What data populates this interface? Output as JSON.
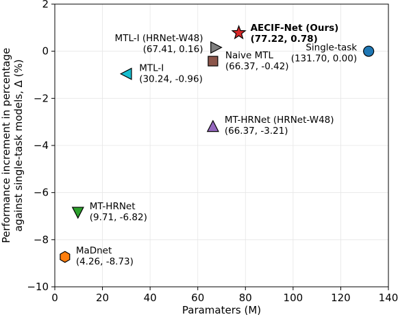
{
  "chart_data": {
    "type": "scatter",
    "title": "",
    "xlabel": "Paramaters (M)",
    "ylabel_lines": [
      "Performance increment in percentage",
      "against single-task models, Δ (%)"
    ],
    "xlim": [
      0,
      140
    ],
    "ylim": [
      -10,
      2
    ],
    "xticks": [
      0,
      20,
      40,
      60,
      80,
      100,
      120,
      140
    ],
    "yticks": [
      -10,
      -8,
      -6,
      -4,
      -2,
      0,
      2
    ],
    "xtick_labels": [
      "0",
      "20",
      "40",
      "60",
      "80",
      "100",
      "120",
      "140"
    ],
    "ytick_labels": [
      "−10",
      "−8",
      "−6",
      "−4",
      "−2",
      "0",
      "2"
    ],
    "grid": true,
    "legend": "none",
    "points": [
      {
        "key": "aecif",
        "x": 77.22,
        "y": 0.78,
        "marker": "star",
        "color": "#d62728",
        "bold": true,
        "label": [
          "AECIF-Net (Ours)",
          "(77.22, 0.78)"
        ],
        "anchor": "start"
      },
      {
        "key": "mtli-w48",
        "x": 67.41,
        "y": 0.16,
        "marker": "triangle-right",
        "color": "#7f7f7f",
        "label": [
          "MTL-I (HRNet-W48)",
          "(67.41, 0.16)"
        ],
        "anchor": "end"
      },
      {
        "key": "naive-mtl",
        "x": 66.37,
        "y": -0.42,
        "marker": "square",
        "color": "#8c564b",
        "label": [
          "Naive MTL",
          "(66.37, -0.42)"
        ],
        "anchor": "start"
      },
      {
        "key": "single-task",
        "x": 131.7,
        "y": 0.0,
        "marker": "circle",
        "color": "#1f77b4",
        "label": [
          "Single-task",
          "(131.70, 0.00)"
        ],
        "anchor": "end"
      },
      {
        "key": "mtli",
        "x": 30.24,
        "y": -0.96,
        "marker": "triangle-left",
        "color": "#17becf",
        "label": [
          "MTL-I",
          "(30.24, -0.96)"
        ],
        "anchor": "start"
      },
      {
        "key": "mthrnet-w48",
        "x": 66.37,
        "y": -3.21,
        "marker": "triangle-up",
        "color": "#9467bd",
        "label": [
          "MT-HRNet (HRNet-W48)",
          "(66.37, -3.21)"
        ],
        "anchor": "start"
      },
      {
        "key": "mthrnet",
        "x": 9.71,
        "y": -6.82,
        "marker": "triangle-down",
        "color": "#2ca02c",
        "label": [
          "MT-HRNet",
          "(9.71, -6.82)"
        ],
        "anchor": "start"
      },
      {
        "key": "madnet",
        "x": 4.26,
        "y": -8.73,
        "marker": "hexagon",
        "color": "#ff7f0e",
        "label": [
          "MaDnet",
          "(4.26, -8.73)"
        ],
        "anchor": "start"
      }
    ]
  }
}
